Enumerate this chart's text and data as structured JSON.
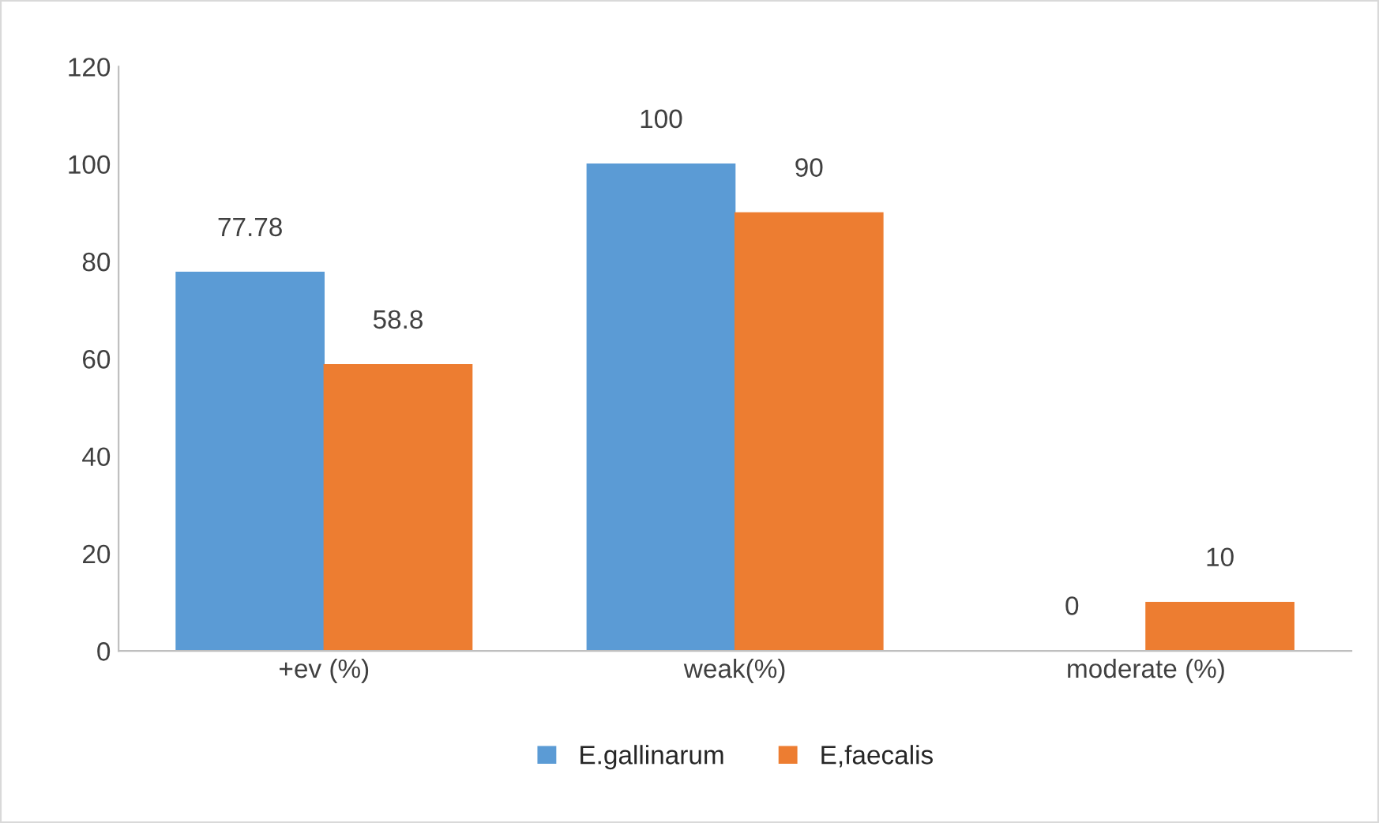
{
  "chart_data": {
    "type": "bar",
    "categories": [
      "+ev (%)",
      "weak(%)",
      "moderate (%)"
    ],
    "series": [
      {
        "name": "E.gallinarum",
        "color": "#5b9bd5",
        "values": [
          77.78,
          100,
          0
        ]
      },
      {
        "name": "E,faecalis",
        "color": "#ed7d31",
        "values": [
          58.8,
          90,
          10
        ]
      }
    ],
    "ylim": [
      0,
      120
    ],
    "yticks": [
      0,
      20,
      40,
      60,
      80,
      100,
      120
    ],
    "grid": false,
    "legend": "bottom",
    "data_labels": true
  }
}
